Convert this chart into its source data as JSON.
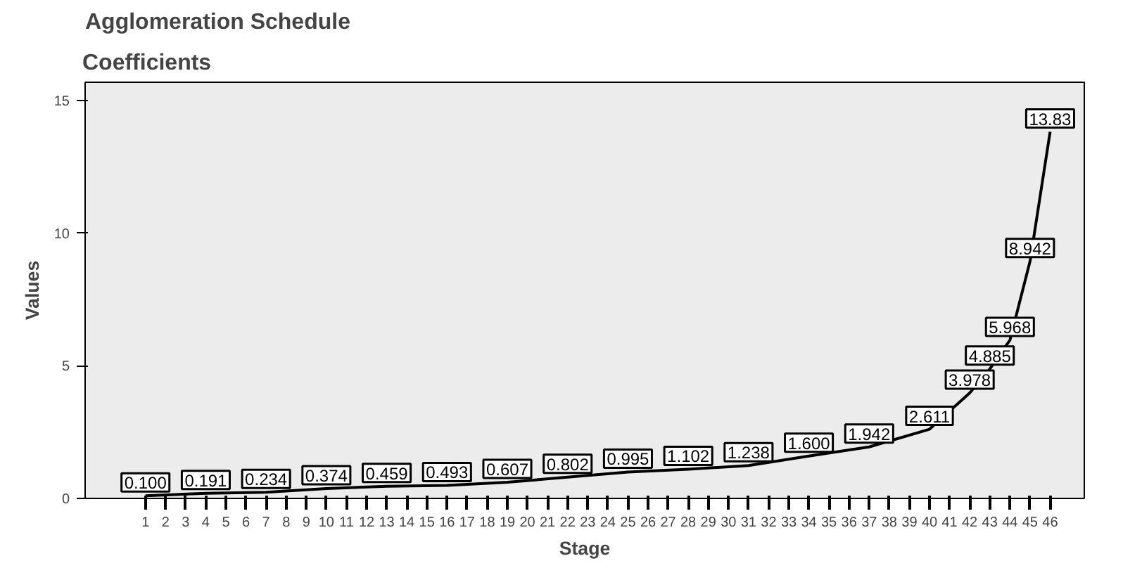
{
  "chart_data": {
    "type": "line",
    "title": "Agglomeration Schedule",
    "subtitle": "Coefficients",
    "xlabel": "Stage",
    "ylabel": "Values",
    "x": [
      1,
      4,
      7,
      10,
      13,
      16,
      19,
      22,
      25,
      28,
      31,
      34,
      37,
      40,
      42,
      43,
      44,
      45,
      46
    ],
    "values": [
      0.1,
      0.191,
      0.234,
      0.374,
      0.459,
      0.493,
      0.607,
      0.802,
      0.995,
      1.102,
      1.238,
      1.6,
      1.942,
      2.611,
      3.978,
      4.885,
      5.968,
      8.942,
      13.83
    ],
    "value_labels": [
      "0.100",
      "0.191",
      "0.234",
      "0.374",
      "0.459",
      "0.493",
      "0.607",
      "0.802",
      "0.995",
      "1.102",
      "1.238",
      "1.600",
      "1.942",
      "2.611",
      "3.978",
      "4.885",
      "5.968",
      "8.942",
      "13.83"
    ],
    "color": "#000000",
    "xlim": [
      -2,
      47.7
    ],
    "ylim": [
      0,
      15.7
    ],
    "xticks": [
      1,
      2,
      3,
      4,
      5,
      6,
      7,
      8,
      9,
      10,
      11,
      12,
      13,
      14,
      15,
      16,
      17,
      18,
      19,
      20,
      21,
      22,
      23,
      24,
      25,
      26,
      27,
      28,
      29,
      30,
      31,
      32,
      33,
      34,
      35,
      36,
      37,
      38,
      39,
      40,
      41,
      42,
      43,
      44,
      45,
      46
    ],
    "yticks": [
      0,
      5,
      10,
      15
    ],
    "grid": false,
    "line_style": "solid"
  }
}
